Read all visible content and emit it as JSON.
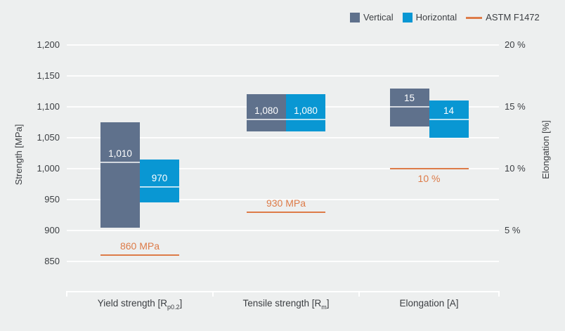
{
  "legend": {
    "items": [
      {
        "label": "Vertical",
        "swatch": "square",
        "color": "#5f718c"
      },
      {
        "label": "Horizontal",
        "swatch": "square",
        "color": "#0997d3"
      },
      {
        "label": "ASTM F1472",
        "swatch": "line",
        "color": "#dd7b48"
      }
    ]
  },
  "chart_data": {
    "type": "bar",
    "title": "",
    "grid": true,
    "legend_position": "top-right",
    "left_axis": {
      "label": "Strength [MPa]",
      "min": 850,
      "max": 1200,
      "step": 50,
      "tick_labels": [
        "850",
        "900",
        "950",
        "1,000",
        "1,050",
        "1,100",
        "1,150",
        "1,200"
      ]
    },
    "right_axis": {
      "label": "Elongation [%]",
      "min": 5,
      "max": 20,
      "step": 5,
      "tick_labels": [
        "5 %",
        "10 %",
        "15 %",
        "20 %"
      ]
    },
    "categories": [
      {
        "key": "yield-strength",
        "label_main": "Yield strength [R",
        "label_sub": "p0.2",
        "label_end": "]",
        "axis": "left"
      },
      {
        "key": "tensile-strength",
        "label_main": "Tensile strength [R",
        "label_sub": "m",
        "label_end": "]",
        "axis": "left"
      },
      {
        "key": "elongation",
        "label_main": "Elongation [A]",
        "label_sub": "",
        "label_end": "",
        "axis": "right"
      }
    ],
    "series": [
      {
        "name": "Vertical",
        "color": "#5f718c",
        "values": [
          {
            "min": 905,
            "max": 1075,
            "mean": 1010,
            "label": "1,010"
          },
          {
            "min": 1060,
            "max": 1120,
            "mean": 1080,
            "label": "1,080"
          },
          {
            "min": 13.4,
            "max": 16.5,
            "mean": 15,
            "label": "15"
          }
        ]
      },
      {
        "name": "Horizontal",
        "color": "#0997d3",
        "values": [
          {
            "min": 945,
            "max": 1015,
            "mean": 970,
            "label": "970"
          },
          {
            "min": 1060,
            "max": 1120,
            "mean": 1080,
            "label": "1,080"
          },
          {
            "min": 12.5,
            "max": 15.5,
            "mean": 14,
            "label": "14"
          }
        ]
      }
    ],
    "reference_line": {
      "name": "ASTM F1472",
      "color": "#dd7b48",
      "values": [
        {
          "value": 860,
          "label": "860 MPa",
          "label_position": "above"
        },
        {
          "value": 930,
          "label": "930 MPa",
          "label_position": "above"
        },
        {
          "value": 10,
          "label": "10 %",
          "label_position": "below"
        }
      ]
    }
  }
}
